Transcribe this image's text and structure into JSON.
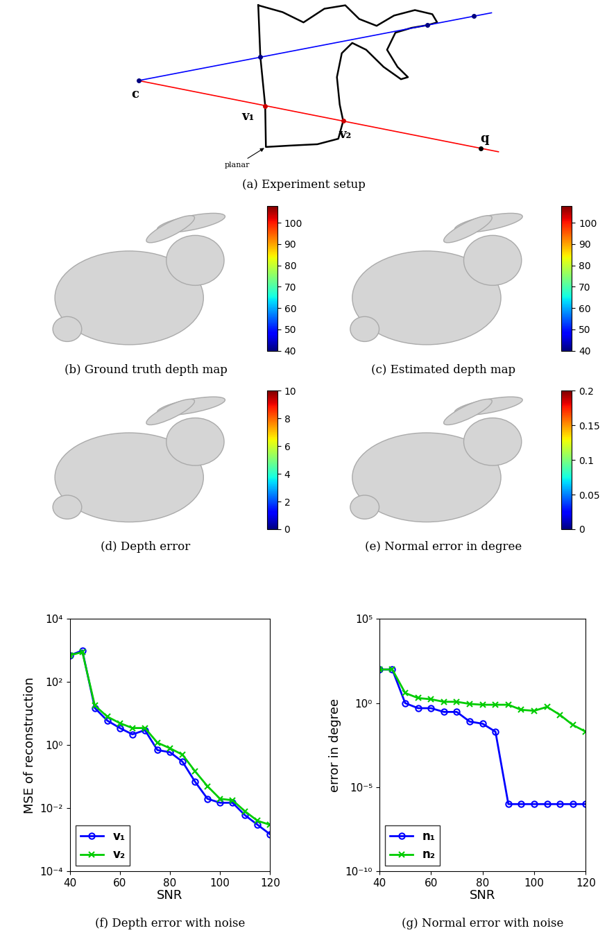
{
  "diagram": {
    "caption": "(a) Experiment setup",
    "camera": "c",
    "first_hit": "v₁",
    "second_hit": "v₂",
    "query": "q",
    "annotation": "planar"
  },
  "images": [
    {
      "caption": "(b) Ground truth depth map",
      "colorbar": {
        "range": [
          40,
          108
        ],
        "ticks": [
          40,
          50,
          60,
          70,
          80,
          90,
          100
        ]
      }
    },
    {
      "caption": "(c) Estimated depth map",
      "colorbar": {
        "range": [
          40,
          108
        ],
        "ticks": [
          40,
          50,
          60,
          70,
          80,
          90,
          100
        ]
      }
    },
    {
      "caption": "(d) Depth error",
      "colorbar": {
        "range": [
          0,
          10
        ],
        "ticks": [
          0,
          2,
          4,
          6,
          8,
          10
        ]
      }
    },
    {
      "caption": "(e) Normal error in degree",
      "colorbar": {
        "range": [
          0,
          0.2
        ],
        "ticks": [
          0,
          0.05,
          0.1,
          0.15,
          0.2
        ]
      }
    }
  ],
  "chart_data": [
    {
      "type": "line",
      "caption": "(f) Depth error with noise",
      "x_label": "SNR",
      "y_label": "MSE of reconstruction",
      "x": [
        40,
        45,
        50,
        55,
        60,
        65,
        70,
        75,
        80,
        85,
        90,
        95,
        100,
        105,
        110,
        115,
        120
      ],
      "series": [
        {
          "name": "v₁",
          "color": "#0000ff",
          "marker": "circle",
          "values": [
            700,
            1000,
            15,
            6,
            3.5,
            2.2,
            3,
            0.7,
            0.6,
            0.3,
            0.07,
            0.02,
            0.015,
            0.015,
            0.006,
            0.003,
            0.0015
          ]
        },
        {
          "name": "v₂",
          "color": "#00cc00",
          "marker": "x",
          "values": [
            700,
            900,
            18,
            8,
            5,
            3.5,
            3.5,
            1.2,
            0.8,
            0.5,
            0.15,
            0.05,
            0.02,
            0.018,
            0.008,
            0.004,
            0.003
          ]
        }
      ],
      "log": "y",
      "xlim": [
        40,
        120
      ],
      "xticks": [
        40,
        60,
        80,
        100,
        120
      ],
      "ylim": [
        0.0001,
        10000
      ],
      "yticks": [
        {
          "value": 0.0001,
          "label": "10⁻⁴"
        },
        {
          "value": 0.01,
          "label": "10⁻²"
        },
        {
          "value": 1,
          "label": "10⁰"
        },
        {
          "value": 100,
          "label": "10²"
        },
        {
          "value": 10000,
          "label": "10⁴"
        }
      ],
      "legend": "lower left"
    },
    {
      "type": "line",
      "caption": "(g) Normal error with noise",
      "x_label": "SNR",
      "y_label": "error in degree",
      "x": [
        40,
        45,
        50,
        55,
        60,
        65,
        70,
        75,
        80,
        85,
        90,
        95,
        100,
        105,
        110,
        115,
        120
      ],
      "series": [
        {
          "name": "n₁",
          "color": "#0000ff",
          "marker": "circle",
          "values": [
            100,
            100,
            1,
            0.5,
            0.5,
            0.3,
            0.3,
            0.08,
            0.06,
            0.02,
            1e-06,
            1e-06,
            1e-06,
            1e-06,
            1e-06,
            1e-06,
            1e-06
          ]
        },
        {
          "name": "n₂",
          "color": "#00cc00",
          "marker": "x",
          "values": [
            100,
            100,
            4,
            2,
            1.7,
            1.2,
            1.2,
            0.9,
            0.8,
            0.8,
            0.8,
            0.4,
            0.35,
            0.6,
            0.2,
            0.05,
            0.02
          ]
        }
      ],
      "log": "y",
      "xlim": [
        40,
        120
      ],
      "xticks": [
        40,
        60,
        80,
        100,
        120
      ],
      "ylim": [
        1e-10,
        100000
      ],
      "yticks": [
        {
          "value": 1e-10,
          "label": "10⁻¹⁰"
        },
        {
          "value": 1e-05,
          "label": "10⁻⁵"
        },
        {
          "value": 1,
          "label": "10⁰"
        },
        {
          "value": 100000,
          "label": "10⁵"
        }
      ],
      "legend": "lower left"
    }
  ]
}
